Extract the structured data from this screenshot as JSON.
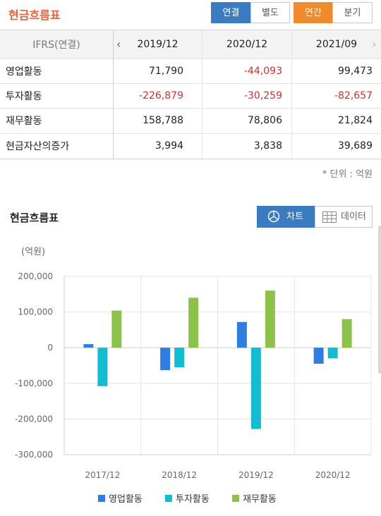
{
  "header": {
    "title": "현금흐름표",
    "tabs": [
      "연결",
      "별도",
      "연간",
      "분기"
    ]
  },
  "table": {
    "columns": [
      "IFRS(연결)",
      "2019/12",
      "2020/12",
      "2021/09"
    ],
    "rows": [
      {
        "label": "영업활동",
        "values": [
          "71,790",
          "-44,093",
          "99,473"
        ]
      },
      {
        "label": "투자활동",
        "values": [
          "-226,879",
          "-30,259",
          "-82,657"
        ]
      },
      {
        "label": "재무활동",
        "values": [
          "158,788",
          "78,806",
          "21,824"
        ]
      },
      {
        "label": "현금자산의증가",
        "values": [
          "3,994",
          "3,838",
          "39,689"
        ]
      }
    ],
    "unit_note": "* 단위 : 억원"
  },
  "chart_section": {
    "title": "현금흐름표",
    "chart_button": "차트",
    "data_button": "데이터",
    "y_unit": "(억원)"
  },
  "chart_data": {
    "type": "bar",
    "categories": [
      "2017/12",
      "2018/12",
      "2019/12",
      "2020/12"
    ],
    "series": [
      {
        "name": "영업활동",
        "color": "#2f7de1",
        "values": [
          10000,
          -63000,
          72000,
          -45000
        ]
      },
      {
        "name": "투자활동",
        "color": "#14bcd1",
        "values": [
          -108000,
          -55000,
          -228000,
          -30000
        ]
      },
      {
        "name": "재무활동",
        "color": "#8cc14c",
        "values": [
          104000,
          140000,
          160000,
          80000
        ]
      }
    ],
    "ylim": [
      -300000,
      200000
    ],
    "yticks": [
      200000,
      100000,
      0,
      -100000,
      -200000,
      -300000
    ],
    "ytick_labels": [
      "200,000",
      "100,000",
      "0",
      "-100,000",
      "-200,000",
      "-300,000"
    ],
    "grid": true,
    "legend_position": "bottom"
  }
}
